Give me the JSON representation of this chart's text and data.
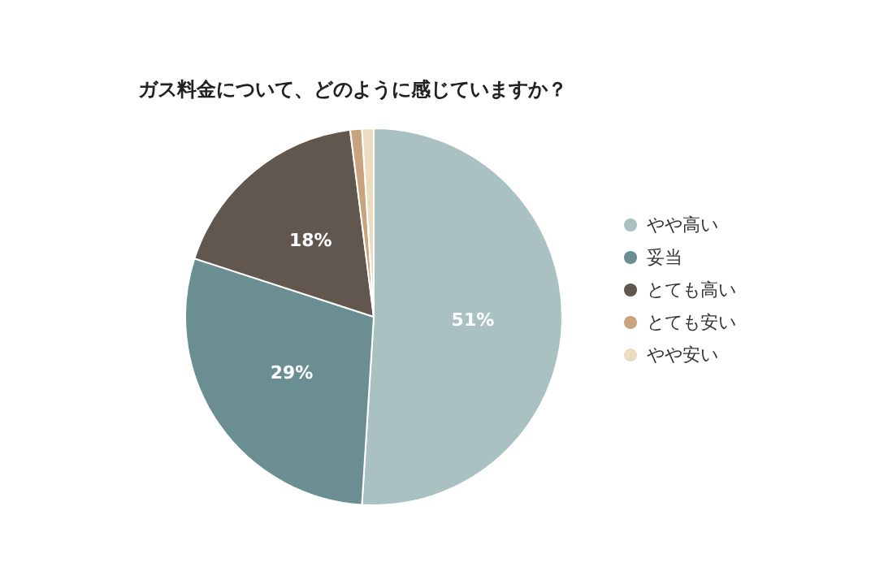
{
  "chart_data": {
    "type": "pie",
    "title": "ガス料金について、どのように感じていますか？",
    "categories": [
      "やや高い",
      "妥当",
      "とても高い",
      "とても安い",
      "やや安い"
    ],
    "values": [
      51,
      29,
      18,
      1,
      1
    ],
    "colors": [
      "#a9c1c0",
      "#6b8e92",
      "#62574e",
      "#c9a27e",
      "#ecdcc0"
    ],
    "value_labels": [
      "51%",
      "29%",
      "18%",
      null,
      null
    ],
    "legend": "right"
  }
}
